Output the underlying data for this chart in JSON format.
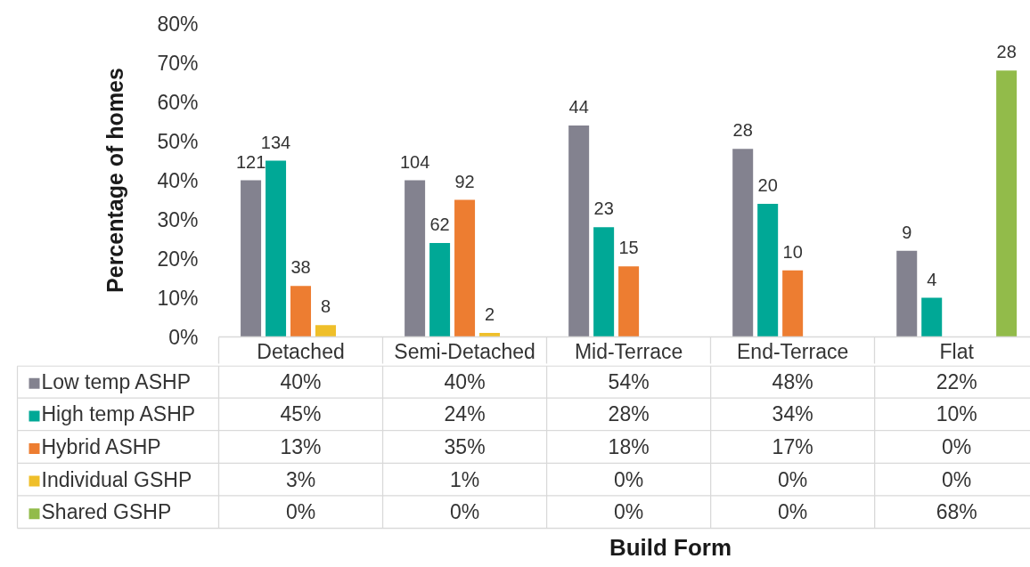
{
  "chart_data": {
    "type": "bar",
    "ylabel": "Percentage of homes",
    "categories": [
      "Detached",
      "Semi-Detached",
      "Mid-Terrace",
      "End-Terrace",
      "Flat"
    ],
    "series": [
      {
        "name": "Low temp ASHP",
        "color": "#83828f",
        "values": [
          40,
          40,
          54,
          48,
          22
        ],
        "value_labels": [
          "40%",
          "40%",
          "54%",
          "48%",
          "22%"
        ]
      },
      {
        "name": "High temp ASHP",
        "color": "#00a896",
        "values": [
          45,
          24,
          28,
          34,
          10
        ],
        "value_labels": [
          "45%",
          "24%",
          "28%",
          "34%",
          "10%"
        ]
      },
      {
        "name": "Hybrid ASHP",
        "color": "#ed7d31",
        "values": [
          13,
          35,
          18,
          17,
          0
        ],
        "value_labels": [
          "13%",
          "35%",
          "18%",
          "17%",
          "0%"
        ]
      },
      {
        "name": "Individual GSHP",
        "color": "#efbf2a",
        "values": [
          3,
          1,
          0,
          0,
          0
        ],
        "value_labels": [
          "3%",
          "1%",
          "0%",
          "0%",
          "0%"
        ]
      },
      {
        "name": "Shared GSHP",
        "color": "#92bb4a",
        "values": [
          0,
          0,
          0,
          0,
          68
        ],
        "value_labels": [
          "0%",
          "0%",
          "0%",
          "0%",
          "68%"
        ]
      }
    ],
    "ylim": [
      0,
      80
    ],
    "yticks": [
      {
        "value": 0,
        "label": "0%"
      },
      {
        "value": 10,
        "label": "10%"
      },
      {
        "value": 20,
        "label": "20%"
      },
      {
        "value": 30,
        "label": "30%"
      },
      {
        "value": 40,
        "label": "40%"
      },
      {
        "value": 50,
        "label": "50%"
      },
      {
        "value": 60,
        "label": "60%"
      },
      {
        "value": 70,
        "label": "70%"
      },
      {
        "value": 80,
        "label": "80%"
      }
    ],
    "legend": "bottom left",
    "annotations": [
      "121",
      "134",
      "38",
      "8",
      "104",
      "62",
      "92",
      "2",
      "44",
      "23",
      "15",
      "28",
      "20",
      "10",
      "9",
      "4",
      "28",
      "Build Form"
    ]
  }
}
